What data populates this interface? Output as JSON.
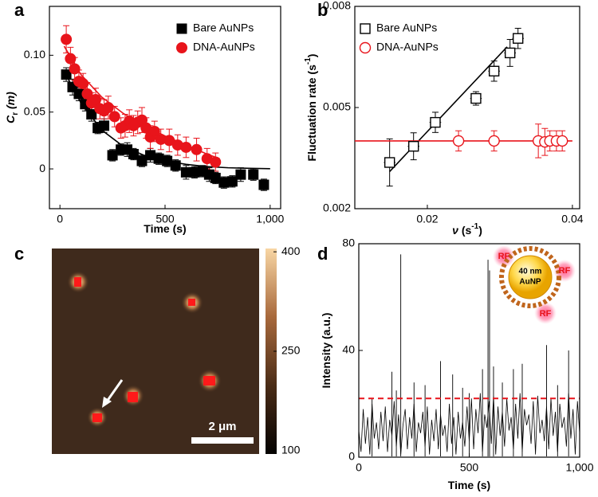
{
  "chart_data": [
    {
      "type": "scatter",
      "panel_label": "a",
      "xlabel": [
        "Time (s)"
      ],
      "ylabel": [
        "C",
        "r",
        " (m)"
      ],
      "xlim": [
        -50,
        1050
      ],
      "ylim": [
        -0.035,
        0.143
      ],
      "xticks": [
        0,
        500,
        {
          "value": 1000,
          "label": "1,000"
        }
      ],
      "yticks": [
        0,
        0.05,
        {
          "value": 0.1,
          "label": "0.10"
        }
      ],
      "legend": "upper right",
      "series": [
        {
          "name": "Bare AuNPs",
          "color": "#000000",
          "marker": "square",
          "filled": true,
          "x": [
            30,
            60,
            90,
            120,
            150,
            180,
            210,
            250,
            290,
            320,
            350,
            390,
            430,
            470,
            510,
            550,
            600,
            640,
            680,
            710,
            740,
            780,
            820,
            860,
            920,
            970
          ],
          "values": [
            0.083,
            0.072,
            0.066,
            0.057,
            0.048,
            0.036,
            0.038,
            0.012,
            0.017,
            0.017,
            0.013,
            0.007,
            0.012,
            0.009,
            0.007,
            0.003,
            -0.003,
            -0.003,
            -0.002,
            -0.005,
            -0.008,
            -0.012,
            -0.011,
            -0.005,
            -0.005,
            -0.014
          ],
          "errors": [
            0.006,
            0.007,
            0.006,
            0.006,
            0.006,
            0.005,
            0.006,
            0.005,
            0.005,
            0.006,
            0.005,
            0.005,
            0.006,
            0.005,
            0.005,
            0.005,
            0.006,
            0.005,
            0.005,
            0.006,
            0.005,
            0.005,
            0.005,
            0.006,
            0.005,
            0.005
          ]
        },
        {
          "name": "DNA-AuNPs",
          "color": "#e8141b",
          "marker": "circle",
          "filled": true,
          "x": [
            30,
            50,
            70,
            90,
            110,
            130,
            150,
            170,
            190,
            210,
            230,
            260,
            290,
            310,
            330,
            350,
            370,
            390,
            410,
            430,
            450,
            480,
            520,
            560,
            600,
            650,
            700,
            740
          ],
          "values": [
            0.114,
            0.097,
            0.088,
            0.077,
            0.075,
            0.066,
            0.058,
            0.061,
            0.053,
            0.051,
            0.054,
            0.046,
            0.036,
            0.038,
            0.042,
            0.038,
            0.041,
            0.043,
            0.036,
            0.028,
            0.033,
            0.026,
            0.025,
            0.021,
            0.019,
            0.017,
            0.009,
            0.006
          ],
          "errors": [
            0.012,
            0.01,
            0.01,
            0.01,
            0.009,
            0.01,
            0.009,
            0.01,
            0.009,
            0.01,
            0.01,
            0.009,
            0.009,
            0.01,
            0.01,
            0.009,
            0.01,
            0.011,
            0.009,
            0.01,
            0.009,
            0.009,
            0.01,
            0.009,
            0.009,
            0.01,
            0.009,
            0.008
          ]
        }
      ],
      "fits": [
        {
          "color": "#000000",
          "x": [
            20,
            100,
            200,
            300,
            400,
            500,
            600,
            700,
            800,
            900,
            1000
          ],
          "values": [
            0.086,
            0.058,
            0.034,
            0.02,
            0.012,
            0.007,
            0.004,
            0.002,
            0.001,
            0.0005,
            0.0002
          ]
        },
        {
          "color": "#e8141b",
          "x": [
            20,
            100,
            200,
            300,
            400,
            500,
            600,
            700,
            760
          ],
          "values": [
            0.108,
            0.083,
            0.063,
            0.049,
            0.038,
            0.029,
            0.021,
            0.013,
            0.009
          ]
        }
      ]
    },
    {
      "type": "scatter",
      "panel_label": "b",
      "xlabel": [
        "ν",
        " (s",
        "-1",
        ")"
      ],
      "ylabel": [
        "Fluctuation rate (s",
        "-1",
        ")"
      ],
      "xlim": [
        0.01,
        0.041
      ],
      "ylim": [
        0.002,
        0.008
      ],
      "xticks": [
        0.02,
        0.04
      ],
      "yticks": [
        0.002,
        0.005,
        0.008
      ],
      "legend": "upper left",
      "series": [
        {
          "name": "Bare AuNPs",
          "color": "#000000",
          "marker": "square",
          "filled": false,
          "x": [
            0.0148,
            0.0181,
            0.0211,
            0.0267,
            0.0292,
            0.0314,
            0.0325
          ],
          "values": [
            0.00337,
            0.00385,
            0.00456,
            0.00527,
            0.00608,
            0.00662,
            0.00705
          ],
          "errors": [
            0.0007,
            0.0004,
            0.0003,
            0.0002,
            0.0003,
            0.0004,
            0.0003
          ],
          "xerrors": [
            0.0008,
            0.0008,
            0.0008,
            0.0008,
            0.0008,
            0.0008,
            0.0008
          ]
        },
        {
          "name": "DNA-AuNPs",
          "color": "#e8141b",
          "marker": "circle",
          "filled": false,
          "x": [
            0.0243,
            0.0292,
            0.0353,
            0.0362,
            0.0369,
            0.0378,
            0.0386
          ],
          "values": [
            0.00401,
            0.00401,
            0.00401,
            0.00398,
            0.00401,
            0.00401,
            0.00401
          ],
          "errors": [
            0.0003,
            0.0003,
            0.0005,
            0.0004,
            0.0003,
            0.0003,
            0.0003
          ],
          "xerrors": [
            0.0008,
            0.0008,
            0.0008,
            0.0008,
            0.0008,
            0.0008,
            0.0008
          ]
        }
      ],
      "fits": [
        {
          "color": "#000000",
          "x": [
            0.0148,
            0.031
          ],
          "values": [
            0.0031,
            0.0068
          ]
        },
        {
          "color": "#e8141b",
          "x": [
            0.01,
            0.04
          ],
          "values": [
            0.00401,
            0.00401
          ]
        }
      ]
    },
    {
      "type": "image",
      "panel_label": "c",
      "clim": [
        95,
        405
      ],
      "cticks": [
        100,
        250,
        400
      ],
      "colormap": [
        "#050302",
        "#4a2c17",
        "#a8693c",
        "#f8d6a4"
      ],
      "scalebar_label": "2 μm"
    },
    {
      "type": "line",
      "panel_label": "d",
      "xlabel": [
        "Time (s)"
      ],
      "ylabel": [
        "Intensity (a.u.)"
      ],
      "xlim": [
        0,
        1000
      ],
      "ylim": [
        0,
        80
      ],
      "xticks": [
        0,
        500,
        {
          "value": 1000,
          "label": "1,000"
        }
      ],
      "yticks": [
        0,
        40,
        80
      ],
      "threshold": 22,
      "threshold_color": "#e8141b",
      "series": [
        {
          "color": "#000000",
          "x": [
            0,
            10,
            20,
            30,
            40,
            50,
            60,
            70,
            80,
            90,
            100,
            110,
            120,
            130,
            140,
            150,
            160,
            170,
            180,
            190,
            200,
            210,
            220,
            230,
            240,
            250,
            260,
            270,
            280,
            290,
            300,
            310,
            320,
            330,
            340,
            350,
            360,
            370,
            380,
            390,
            400,
            410,
            420,
            430,
            440,
            450,
            460,
            470,
            480,
            490,
            500,
            510,
            520,
            530,
            540,
            550,
            560,
            570,
            580,
            590,
            600,
            610,
            620,
            630,
            640,
            650,
            660,
            670,
            680,
            690,
            700,
            710,
            720,
            730,
            740,
            750,
            760,
            770,
            780,
            790,
            800,
            810,
            820,
            830,
            840,
            850,
            860,
            870,
            880,
            890,
            900,
            910,
            920,
            930,
            940,
            950,
            960,
            970,
            980,
            990,
            1000
          ],
          "values": [
            10,
            2,
            18,
            5,
            15,
            1,
            20,
            7,
            13,
            3,
            17,
            6,
            19,
            2,
            14,
            8,
            21,
            4,
            16,
            1,
            12,
            18,
            3,
            15,
            7,
            20,
            2,
            13,
            9,
            17,
            4,
            19,
            1,
            14,
            6,
            18,
            3,
            16,
            8,
            12,
            2,
            20,
            5,
            15,
            1,
            17,
            7,
            13,
            4,
            19,
            6,
            22,
            3,
            18,
            9,
            24,
            2,
            16,
            11,
            21,
            5,
            23,
            1,
            19,
            8,
            17,
            4,
            22,
            10,
            15,
            3,
            20,
            7,
            24,
            2,
            18,
            12,
            16,
            5,
            21,
            1,
            23,
            9,
            14,
            6,
            19,
            3,
            22,
            8,
            17,
            2,
            20,
            11,
            15,
            4,
            24,
            7,
            18,
            1,
            21,
            9
          ]
        }
      ],
      "spikes": {
        "color": "#000000",
        "x": [
          60,
          150,
          170,
          190,
          250,
          300,
          370,
          425,
          470,
          500,
          560,
          585,
          592,
          610,
          650,
          700,
          740,
          850,
          900,
          950
        ],
        "values": [
          22,
          32,
          25,
          76,
          28,
          27,
          36,
          31,
          26,
          24,
          33,
          74,
          70,
          34,
          28,
          33,
          35,
          42,
          27,
          40
        ]
      },
      "annotations": [
        "40 nm",
        "AuNP",
        "RF",
        "RF",
        "RF"
      ]
    }
  ]
}
